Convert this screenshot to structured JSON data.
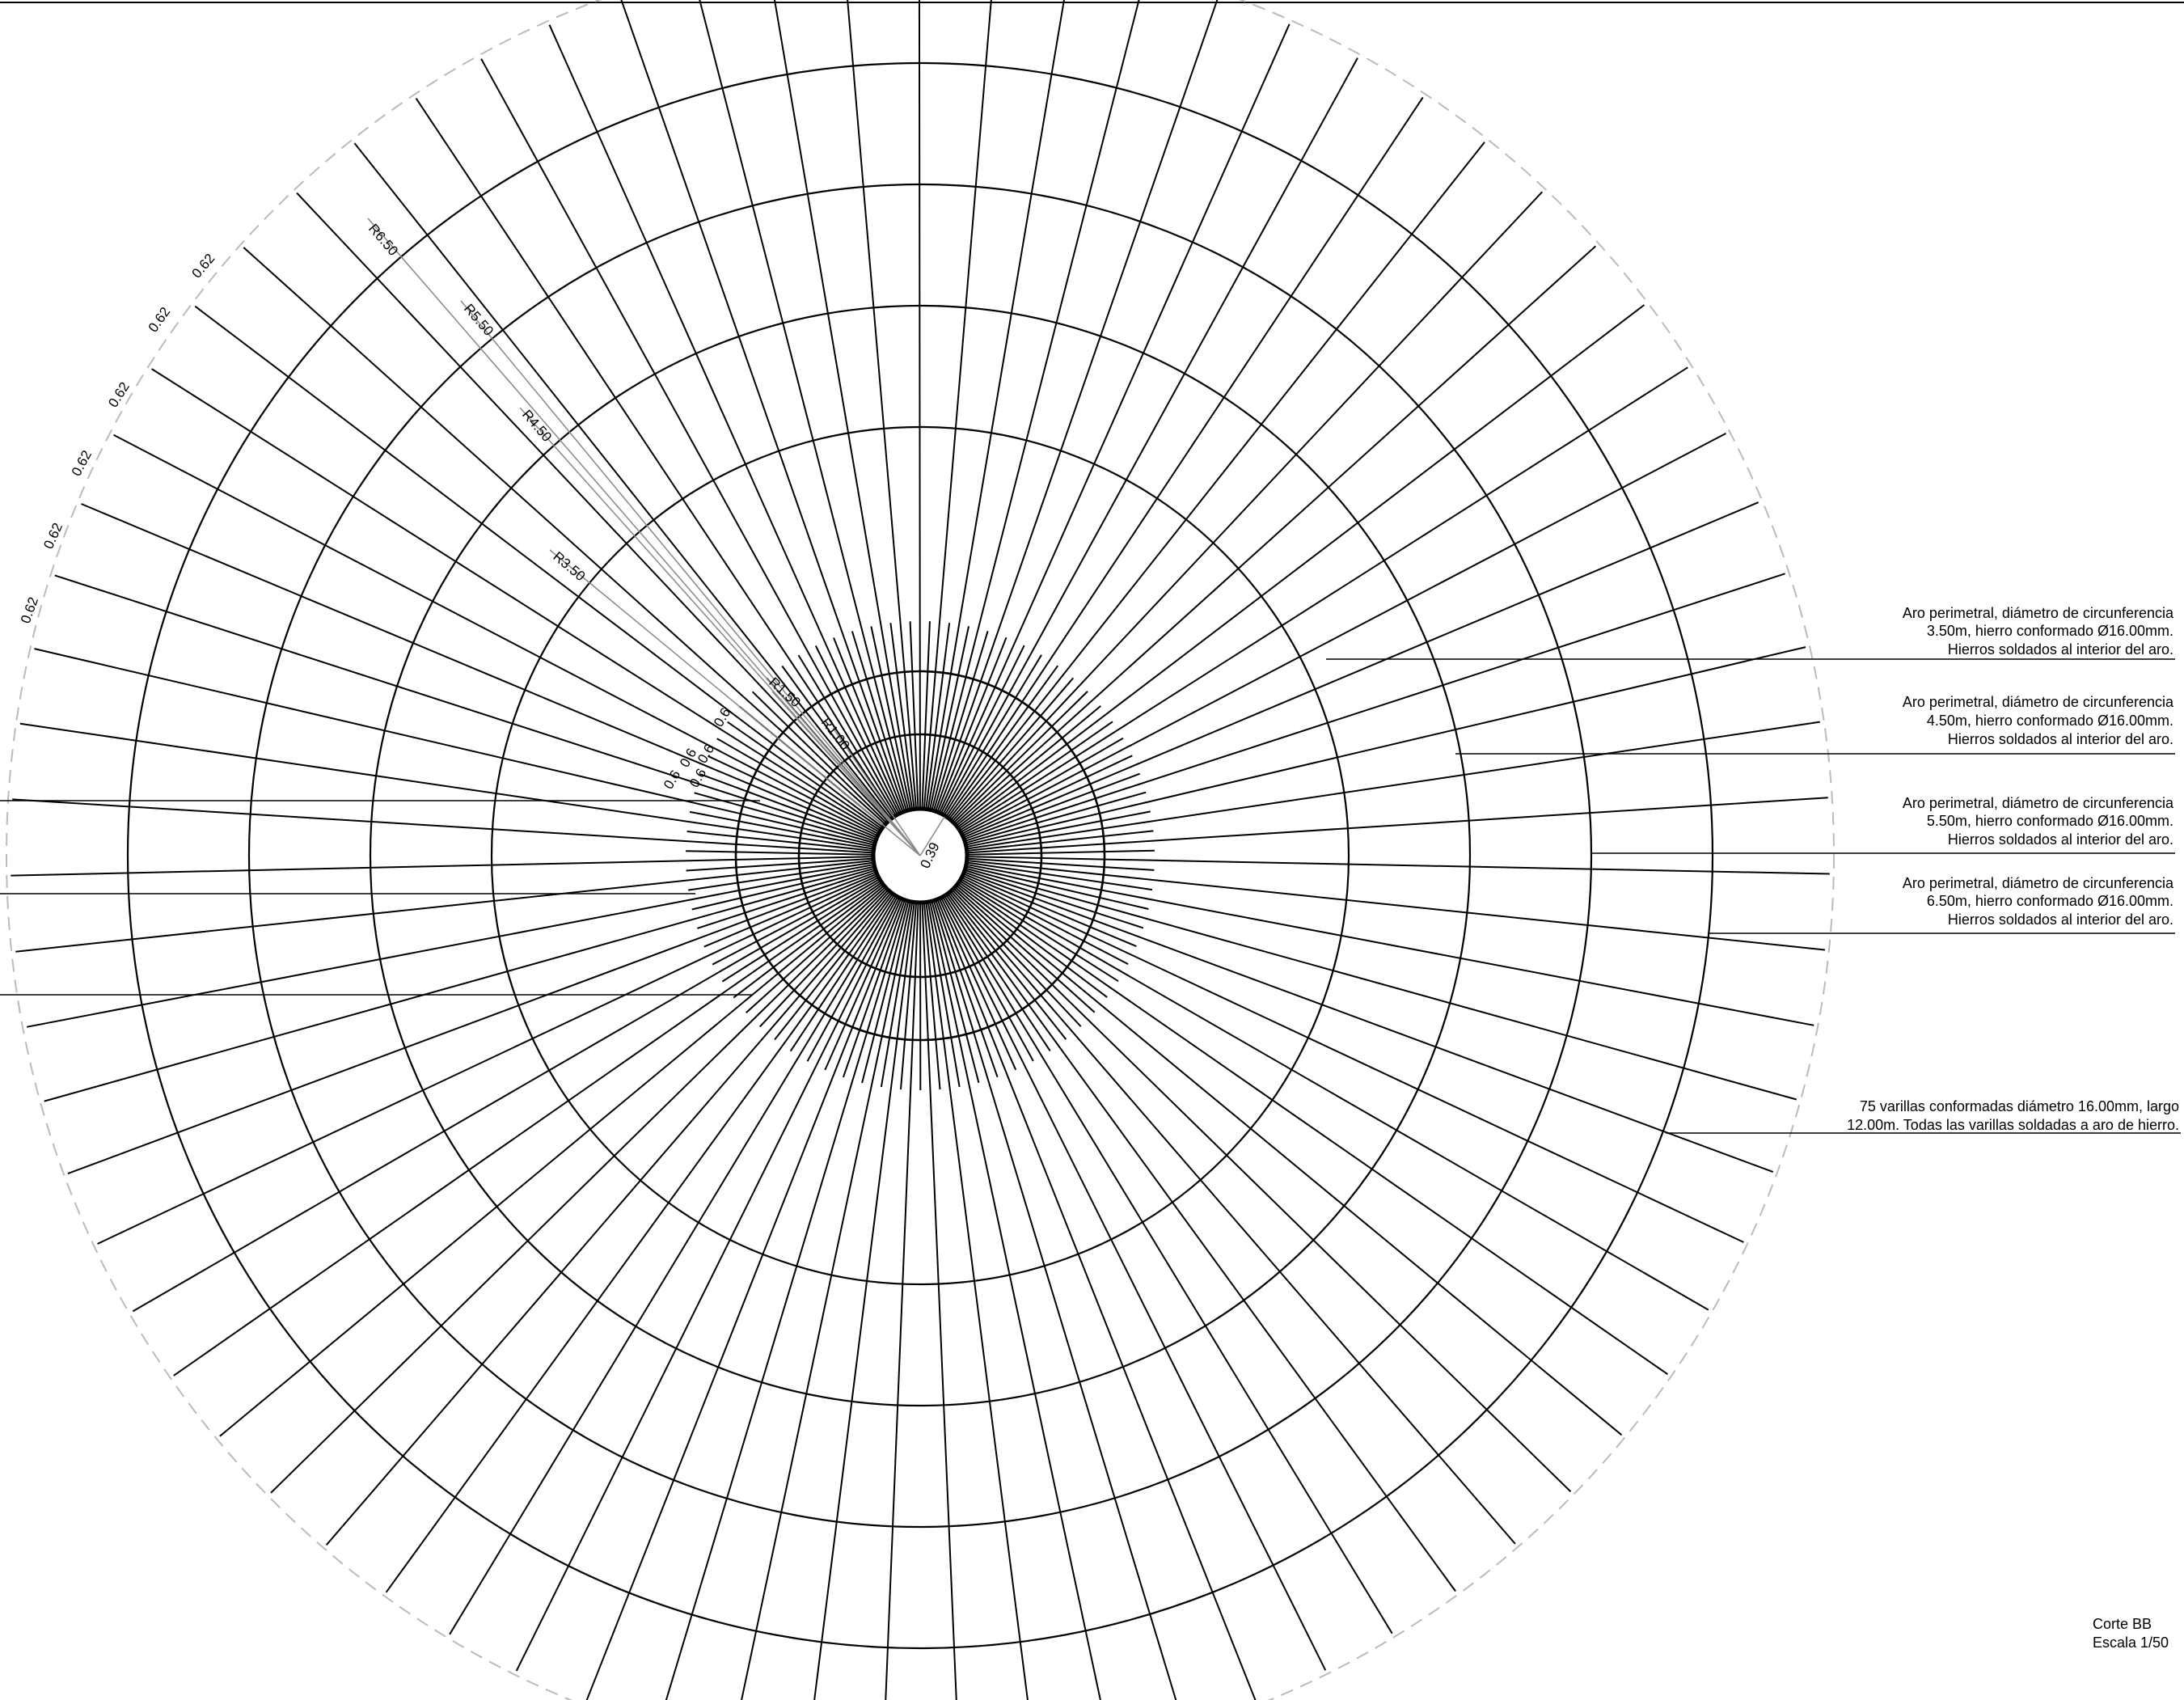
{
  "drawing": {
    "frame_color": "#000000",
    "guide_color": "#bbbbbb",
    "dimension_color": "#888888"
  },
  "structure": {
    "center_hole_diameter": "0.39",
    "inner_ring_label": "R1.00",
    "inner_ring_label_2": "R1.50",
    "ring_radii_labels": [
      "R3.50",
      "R4.50",
      "R5.50",
      "R6.50"
    ],
    "outer_spacing_labels": [
      "0.62",
      "0.62",
      "0.62",
      "0.62",
      "0.62",
      "0.62"
    ],
    "inner_spacing_labels": [
      "0.6",
      "0.6",
      "0.6",
      "0.6",
      "0.6"
    ]
  },
  "notes": [
    {
      "line1": "Aro perimetral, diámetro de circunferencia",
      "line2": "3.50m, hierro conformado Ø16.00mm.",
      "line3": "Hierros soldados al interior del aro."
    },
    {
      "line1": "Aro perimetral, diámetro de circunferencia",
      "line2": "4.50m, hierro conformado Ø16.00mm.",
      "line3": "Hierros soldados al interior del aro."
    },
    {
      "line1": "Aro perimetral, diámetro de circunferencia",
      "line2": "5.50m, hierro conformado Ø16.00mm.",
      "line3": "Hierros soldados al interior del aro."
    },
    {
      "line1": "Aro perimetral, diámetro de circunferencia",
      "line2": "6.50m, hierro conformado Ø16.00mm.",
      "line3": "Hierros soldados al interior del aro."
    }
  ],
  "rods_note": {
    "line1": "75 varillas conformadas diámetro 16.00mm, largo",
    "line2": "12.00m. Todas las varillas soldadas a aro de hierro."
  },
  "title_block": {
    "title": "Corte BB",
    "scale": "Escala 1/50"
  }
}
